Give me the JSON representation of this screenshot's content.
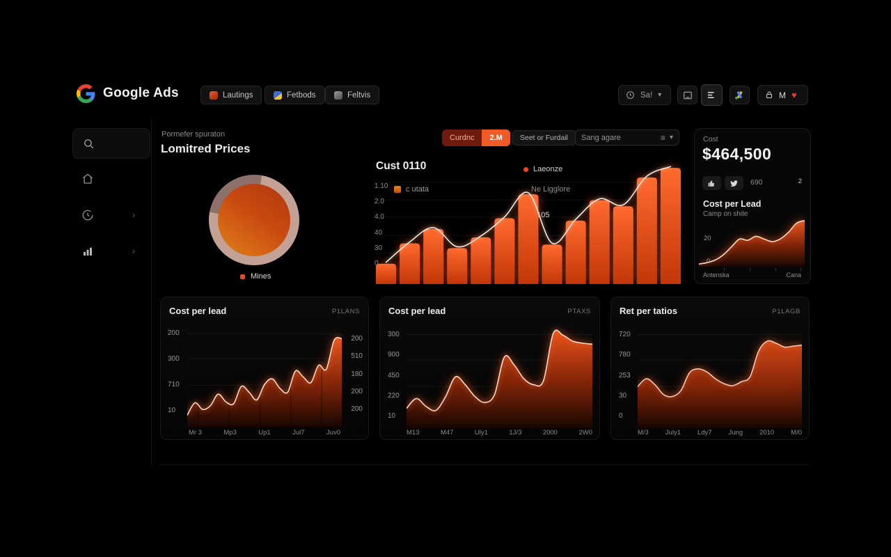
{
  "header": {
    "brand": "Google Ads",
    "nav": [
      {
        "label": "Lautings"
      },
      {
        "label": "Fetbods"
      },
      {
        "label": "Feltvis"
      }
    ],
    "time_label": "Sa!",
    "account_label": "M"
  },
  "icons": {
    "chevron_down": "▾",
    "chevron_right": "›",
    "heart": "♥",
    "filter_lines": "≡"
  },
  "panel_prices": {
    "eyebrow": "Pormefer spuraton",
    "title": "Lomitred Prices",
    "legend": "Mines"
  },
  "panel_bar": {
    "toggle_left": "Curdnc",
    "toggle_right": "2.M",
    "button": "Seet or Furdail",
    "dropdown": "Sang agare",
    "title": "Cust 0110",
    "legend_top": "Laeonze",
    "legend_mid_left": "c utata",
    "legend_mid_right": "Ne Ligglore",
    "legend_value": "$105"
  },
  "panel_cost": {
    "label": "Cost",
    "value": "$464,500",
    "badge_count": "690",
    "title": "Cost per Lead",
    "subtitle": "Camp on shite",
    "peak_label": "2"
  },
  "accents": {
    "orange": "#f05a24",
    "dark_red": "#6e1a0d",
    "green": "#36b24a",
    "heart_red": "#e53935",
    "ring_light": "#c4a195",
    "ring_dark": "#8d706a"
  },
  "chart_data": [
    {
      "id": "donut",
      "type": "pie",
      "title": "Lomitred Prices",
      "slices": [
        {
          "label": "Mines",
          "value": 75,
          "color": "#c4a195"
        },
        {
          "label": "",
          "value": 25,
          "color": "#8d706a"
        }
      ],
      "legend_position": "bottom"
    },
    {
      "id": "bar_main",
      "type": "bar",
      "title": "Cust 0110",
      "yticks": [
        "1.10",
        "2.0",
        "4.0",
        "40",
        "30",
        "0"
      ],
      "values": [
        17,
        34,
        46,
        30,
        39,
        55,
        75,
        33,
        53,
        70,
        65,
        89,
        97
      ],
      "ymax": 100,
      "grid": true,
      "overlay_line": true,
      "hgrid": [
        0.18,
        0.32,
        0.46,
        0.61,
        0.75,
        0.89
      ],
      "fill_top": "#ff6a2e",
      "fill_bottom": "#c23608",
      "line_color": "#fff3ea"
    },
    {
      "id": "mini_cost",
      "type": "area",
      "title": "Cost per Lead",
      "yticks": [
        "20",
        "0"
      ],
      "xticks": [
        "Antenska",
        "Cana"
      ],
      "values": [
        2,
        3,
        5,
        9,
        15,
        21,
        20,
        23,
        21,
        19,
        21,
        26,
        33,
        35
      ],
      "ymax": 38,
      "grid": false,
      "fill_top": "#ef5a1f",
      "line_color": "#ffd8c2"
    },
    {
      "id": "card1",
      "type": "area",
      "title": "Cost per lead",
      "tag": "P1LANS",
      "yticks_left": [
        "200",
        "300",
        "710",
        "10"
      ],
      "yticks_right": [
        "200",
        "510",
        "180",
        "200",
        "200"
      ],
      "xticks": [
        "Mr 3",
        "Mp3",
        "Up1",
        "Jul7",
        "Juv0"
      ],
      "values": [
        12,
        25,
        18,
        22,
        34,
        26,
        24,
        42,
        36,
        28,
        44,
        50,
        40,
        36,
        58,
        52,
        46,
        64,
        60,
        90,
        92
      ],
      "ymax": 100,
      "grid": true,
      "hgrid": [
        0.06,
        0.31,
        0.58,
        0.85
      ],
      "vgrid": [
        0.07,
        0.27,
        0.47,
        0.67,
        0.87
      ],
      "fill_top": "#ef5a1f",
      "line_color": "#ffd8c2"
    },
    {
      "id": "card2",
      "type": "area",
      "title": "Cost per lead",
      "tag": "PTAXS",
      "yticks_left": [
        "300",
        "900",
        "450",
        "220",
        "10"
      ],
      "xticks": [
        "M13",
        "M47",
        "Uly1",
        "1J/3",
        "2000",
        "2W0"
      ],
      "values": [
        20,
        30,
        22,
        18,
        32,
        52,
        44,
        32,
        26,
        34,
        72,
        64,
        50,
        44,
        48,
        96,
        94,
        88,
        86,
        85
      ],
      "ymax": 100,
      "grid": true,
      "hgrid": [
        0.08,
        0.33,
        0.59,
        0.8,
        0.96
      ],
      "fill_top": "#f4551c",
      "line_color": "#ffd8c2"
    },
    {
      "id": "card3",
      "type": "area",
      "title": "Ret per tatios",
      "tag": "P1LAGB",
      "yticks_left": [
        "720",
        "780",
        "253",
        "30",
        "0"
      ],
      "xticks": [
        "M/3",
        "July1",
        "Ldy7",
        "Jung",
        "2010",
        "M/0"
      ],
      "values": [
        42,
        50,
        44,
        34,
        32,
        38,
        56,
        60,
        57,
        50,
        45,
        43,
        47,
        52,
        78,
        88,
        86,
        82,
        83,
        84
      ],
      "ymax": 100,
      "grid": true,
      "hgrid": [
        0.08,
        0.33,
        0.59,
        0.8,
        0.96
      ],
      "fill_top": "#d84a16",
      "line_color": "#f5c9b4"
    }
  ]
}
